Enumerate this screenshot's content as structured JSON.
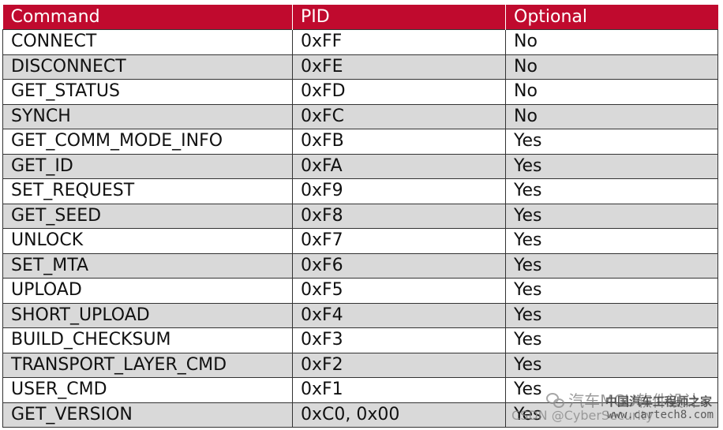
{
  "table": {
    "headers": [
      "Command",
      "PID",
      "Optional"
    ],
    "rows": [
      [
        "CONNECT",
        "0xFF",
        "No"
      ],
      [
        "DISCONNECT",
        "0xFE",
        "No"
      ],
      [
        "GET_STATUS",
        "0xFD",
        "No"
      ],
      [
        "SYNCH",
        "0xFC",
        "No"
      ],
      [
        "GET_COMM_MODE_INFO",
        "0xFB",
        "Yes"
      ],
      [
        "GET_ID",
        "0xFA",
        "Yes"
      ],
      [
        "SET_REQUEST",
        "0xF9",
        "Yes"
      ],
      [
        "GET_SEED",
        "0xF8",
        "Yes"
      ],
      [
        "UNLOCK",
        "0xF7",
        "Yes"
      ],
      [
        "SET_MTA",
        "0xF6",
        "Yes"
      ],
      [
        "UPLOAD",
        "0xF5",
        "Yes"
      ],
      [
        "SHORT_UPLOAD",
        "0xF4",
        "Yes"
      ],
      [
        "BUILD_CHECKSUM",
        "0xF3",
        "Yes"
      ],
      [
        "TRANSPORT_LAYER_CMD",
        "0xF2",
        "Yes"
      ],
      [
        "USER_CMD",
        "0xF1",
        "Yes"
      ],
      [
        "GET_VERSION",
        "0xC0, 0x00",
        "Yes"
      ]
    ]
  },
  "watermarks": {
    "top_text": "汽车MCU软件设计",
    "mid_text": "中国汽车工程师之家",
    "bottom_left_text": "CSDN @CyberSecurity",
    "bottom_right_text": "www.cartech8.com",
    "icon": "wechat-icon"
  },
  "colors": {
    "header_bg": "#c00a2e",
    "header_text": "#ffffff",
    "row_alt_bg": "#d9d9d9",
    "row_bg": "#ffffff"
  }
}
